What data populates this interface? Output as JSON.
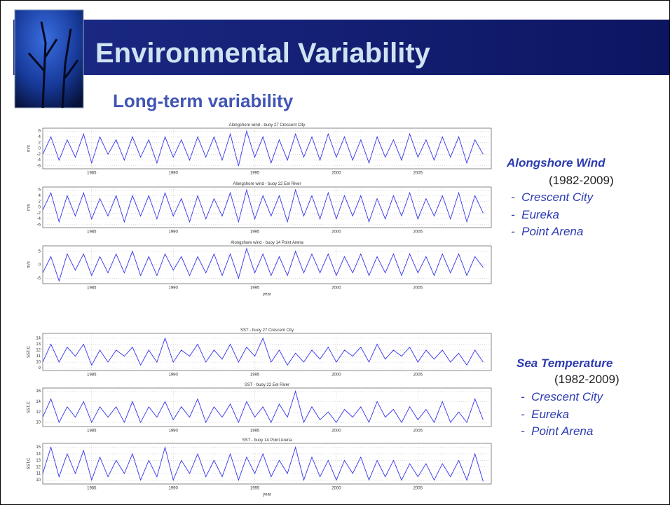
{
  "slide": {
    "title": "Environmental Variability",
    "subtitle": "Long-term variability",
    "sections": [
      {
        "heading": "Alongshore Wind",
        "period": "(1982-2009)",
        "items": [
          "-  Crescent City",
          "-  Eureka",
          "-  Point Arena"
        ]
      },
      {
        "heading": "Sea Temperature",
        "period": "(1982-2009)",
        "items": [
          "-  Crescent City",
          "-  Eureka",
          "-  Point Arena"
        ]
      }
    ]
  },
  "chart_data": [
    {
      "type": "line",
      "title": "Alongshore wind - buoy 27 Crescent City",
      "ylabel": "m/s",
      "color": "#3333ee",
      "grid": true,
      "xlim": [
        1982,
        2009.5
      ],
      "xticks": [
        1985,
        1990,
        1995,
        2000,
        2005
      ],
      "ylim": [
        -7,
        7
      ],
      "yticks": [
        -6,
        -4,
        -2,
        0,
        2,
        4,
        6
      ],
      "x": [
        1982,
        1982.5,
        1983,
        1983.5,
        1984,
        1984.5,
        1985,
        1985.5,
        1986,
        1986.5,
        1987,
        1987.5,
        1988,
        1988.5,
        1989,
        1989.5,
        1990,
        1990.5,
        1991,
        1991.5,
        1992,
        1992.5,
        1993,
        1993.5,
        1994,
        1994.5,
        1995,
        1995.5,
        1996,
        1996.5,
        1997,
        1997.5,
        1998,
        1998.5,
        1999,
        1999.5,
        2000,
        2000.5,
        2001,
        2001.5,
        2002,
        2002.5,
        2003,
        2003.5,
        2004,
        2004.5,
        2005,
        2005.5,
        2006,
        2006.5,
        2007,
        2007.5,
        2008,
        2008.5,
        2009
      ],
      "values": [
        -2,
        4,
        -4,
        3,
        -3,
        5,
        -5,
        4,
        -2,
        3,
        -4,
        4,
        -3,
        3,
        -5,
        4,
        -3,
        3,
        -4,
        4,
        -3,
        4,
        -4,
        5,
        -6,
        6,
        -3,
        4,
        -5,
        3,
        -4,
        5,
        -3,
        4,
        -4,
        5,
        -3,
        4,
        -4,
        3,
        -5,
        4,
        -3,
        3,
        -4,
        5,
        -3,
        3,
        -4,
        4,
        -3,
        4,
        -5,
        3,
        -2
      ]
    },
    {
      "type": "line",
      "title": "Alongshore wind - buoy 22 Eel River",
      "ylabel": "m/s",
      "color": "#3333ee",
      "grid": true,
      "xlim": [
        1982,
        2009.5
      ],
      "xticks": [
        1985,
        1990,
        1995,
        2000,
        2005
      ],
      "ylim": [
        -7,
        7
      ],
      "yticks": [
        -6,
        -4,
        -2,
        0,
        2,
        4,
        6
      ],
      "x": [
        1982,
        1982.5,
        1983,
        1983.5,
        1984,
        1984.5,
        1985,
        1985.5,
        1986,
        1986.5,
        1987,
        1987.5,
        1988,
        1988.5,
        1989,
        1989.5,
        1990,
        1990.5,
        1991,
        1991.5,
        1992,
        1992.5,
        1993,
        1993.5,
        1994,
        1994.5,
        1995,
        1995.5,
        1996,
        1996.5,
        1997,
        1997.5,
        1998,
        1998.5,
        1999,
        1999.5,
        2000,
        2000.5,
        2001,
        2001.5,
        2002,
        2002.5,
        2003,
        2003.5,
        2004,
        2004.5,
        2005,
        2005.5,
        2006,
        2006.5,
        2007,
        2007.5,
        2008,
        2008.5,
        2009
      ],
      "values": [
        -1,
        5,
        -5,
        4,
        -3,
        5,
        -4,
        3,
        -3,
        4,
        -5,
        4,
        -3,
        4,
        -4,
        5,
        -3,
        3,
        -5,
        4,
        -4,
        3,
        -3,
        5,
        -5,
        6,
        -4,
        4,
        -3,
        4,
        -5,
        6,
        -3,
        4,
        -4,
        5,
        -4,
        4,
        -3,
        4,
        -5,
        3,
        -4,
        4,
        -3,
        5,
        -4,
        3,
        -3,
        4,
        -4,
        5,
        -5,
        4,
        -2
      ]
    },
    {
      "type": "line",
      "title": "Alongshore wind - buoy 14 Point Arena",
      "ylabel": "m/s",
      "xlabel": "year",
      "color": "#3333ee",
      "grid": true,
      "xlim": [
        1982,
        2009.5
      ],
      "xticks": [
        1985,
        1990,
        1995,
        2000,
        2005
      ],
      "ylim": [
        -7,
        7
      ],
      "yticks": [
        -5,
        0,
        5
      ],
      "x": [
        1982,
        1982.5,
        1983,
        1983.5,
        1984,
        1984.5,
        1985,
        1985.5,
        1986,
        1986.5,
        1987,
        1987.5,
        1988,
        1988.5,
        1989,
        1989.5,
        1990,
        1990.5,
        1991,
        1991.5,
        1992,
        1992.5,
        1993,
        1993.5,
        1994,
        1994.5,
        1995,
        1995.5,
        1996,
        1996.5,
        1997,
        1997.5,
        1998,
        1998.5,
        1999,
        1999.5,
        2000,
        2000.5,
        2001,
        2001.5,
        2002,
        2002.5,
        2003,
        2003.5,
        2004,
        2004.5,
        2005,
        2005.5,
        2006,
        2006.5,
        2007,
        2007.5,
        2008,
        2008.5,
        2009
      ],
      "values": [
        -3,
        3,
        -6,
        4,
        -2,
        4,
        -4,
        3,
        -3,
        4,
        -3,
        5,
        -4,
        3,
        -4,
        4,
        -2,
        3,
        -4,
        3,
        -3,
        4,
        -4,
        4,
        -5,
        6,
        -3,
        4,
        -4,
        3,
        -4,
        5,
        -3,
        4,
        -3,
        4,
        -4,
        3,
        -3,
        4,
        -4,
        3,
        -3,
        4,
        -4,
        4,
        -3,
        3,
        -4,
        4,
        -3,
        4,
        -4,
        3,
        -1
      ]
    },
    {
      "type": "line",
      "title": "SST - buoy 27 Crescent City",
      "ylabel": "SST,C",
      "color": "#3333ee",
      "grid": true,
      "xlim": [
        1982,
        2009.5
      ],
      "xticks": [
        1985,
        1990,
        1995,
        2000,
        2005
      ],
      "ylim": [
        8.6,
        14.8
      ],
      "yticks": [
        9,
        10,
        11,
        12,
        13,
        14
      ],
      "x": [
        1982,
        1982.5,
        1983,
        1983.5,
        1984,
        1984.5,
        1985,
        1985.5,
        1986,
        1986.5,
        1987,
        1987.5,
        1988,
        1988.5,
        1989,
        1989.5,
        1990,
        1990.5,
        1991,
        1991.5,
        1992,
        1992.5,
        1993,
        1993.5,
        1994,
        1994.5,
        1995,
        1995.5,
        1996,
        1996.5,
        1997,
        1997.5,
        1998,
        1998.5,
        1999,
        1999.5,
        2000,
        2000.5,
        2001,
        2001.5,
        2002,
        2002.5,
        2003,
        2003.5,
        2004,
        2004.5,
        2005,
        2005.5,
        2006,
        2006.5,
        2007,
        2007.5,
        2008,
        2008.5,
        2009
      ],
      "values": [
        10,
        13,
        10,
        12.5,
        11,
        13,
        9.5,
        12,
        10,
        12,
        11,
        12.5,
        9.5,
        12,
        10,
        14,
        10,
        12,
        11,
        13,
        10,
        12,
        10.5,
        13,
        10,
        12.5,
        11,
        14,
        10,
        12,
        9.5,
        11.5,
        10,
        12,
        10.5,
        12.5,
        10,
        12,
        11,
        12.5,
        10,
        13,
        10.5,
        12,
        11,
        12.5,
        10,
        12,
        10.5,
        12,
        10,
        11.5,
        9.5,
        12,
        10
      ]
    },
    {
      "type": "line",
      "title": "SST - buoy 22 Eel River",
      "ylabel": "SST,C",
      "color": "#3333ee",
      "grid": true,
      "xlim": [
        1982,
        2009.5
      ],
      "xticks": [
        1985,
        1990,
        1995,
        2000,
        2005
      ],
      "ylim": [
        9.2,
        16.6
      ],
      "yticks": [
        10,
        12,
        14,
        16
      ],
      "x": [
        1982,
        1982.5,
        1983,
        1983.5,
        1984,
        1984.5,
        1985,
        1985.5,
        1986,
        1986.5,
        1987,
        1987.5,
        1988,
        1988.5,
        1989,
        1989.5,
        1990,
        1990.5,
        1991,
        1991.5,
        1992,
        1992.5,
        1993,
        1993.5,
        1994,
        1994.5,
        1995,
        1995.5,
        1996,
        1996.5,
        1997,
        1997.5,
        1998,
        1998.5,
        1999,
        1999.5,
        2000,
        2000.5,
        2001,
        2001.5,
        2002,
        2002.5,
        2003,
        2003.5,
        2004,
        2004.5,
        2005,
        2005.5,
        2006,
        2006.5,
        2007,
        2007.5,
        2008,
        2008.5,
        2009
      ],
      "values": [
        11,
        14.5,
        10,
        13,
        11,
        14,
        10,
        13,
        11,
        13,
        10,
        14,
        10,
        13,
        11,
        14,
        10.5,
        13,
        11,
        14.5,
        10,
        13,
        11,
        13.5,
        10,
        14,
        11,
        13,
        10,
        13.5,
        11,
        16,
        10,
        13,
        10.5,
        12,
        10,
        12.5,
        11,
        13,
        10,
        14,
        11,
        12.5,
        10,
        13,
        10.5,
        12.5,
        10,
        14,
        10,
        12,
        10,
        14.5,
        10.5
      ]
    },
    {
      "type": "line",
      "title": "SST - buoy 14 Point Arena",
      "ylabel": "SST,C",
      "xlabel": "year",
      "color": "#3333ee",
      "grid": true,
      "xlim": [
        1982,
        2009.5
      ],
      "xticks": [
        1985,
        1990,
        1995,
        2000,
        2005
      ],
      "ylim": [
        9.4,
        15.6
      ],
      "yticks": [
        10,
        11,
        12,
        13,
        14,
        15
      ],
      "x": [
        1982,
        1982.5,
        1983,
        1983.5,
        1984,
        1984.5,
        1985,
        1985.5,
        1986,
        1986.5,
        1987,
        1987.5,
        1988,
        1988.5,
        1989,
        1989.5,
        1990,
        1990.5,
        1991,
        1991.5,
        1992,
        1992.5,
        1993,
        1993.5,
        1994,
        1994.5,
        1995,
        1995.5,
        1996,
        1996.5,
        1997,
        1997.5,
        1998,
        1998.5,
        1999,
        1999.5,
        2000,
        2000.5,
        2001,
        2001.5,
        2002,
        2002.5,
        2003,
        2003.5,
        2004,
        2004.5,
        2005,
        2005.5,
        2006,
        2006.5,
        2007,
        2007.5,
        2008,
        2008.5,
        2009
      ],
      "values": [
        11,
        15,
        10.5,
        14,
        11,
        14.5,
        10,
        13.5,
        10.5,
        13,
        11,
        14,
        10,
        13,
        10.5,
        15,
        10,
        13,
        11,
        14,
        10.5,
        13,
        10.5,
        14,
        10,
        13.5,
        11,
        14,
        10.5,
        13,
        11,
        15,
        10,
        13.5,
        10.5,
        13,
        10,
        13,
        11,
        13.5,
        10,
        13,
        10.5,
        13,
        10,
        12.5,
        10.5,
        12.5,
        10,
        12.5,
        10.5,
        13,
        10,
        14,
        9.8
      ]
    }
  ]
}
